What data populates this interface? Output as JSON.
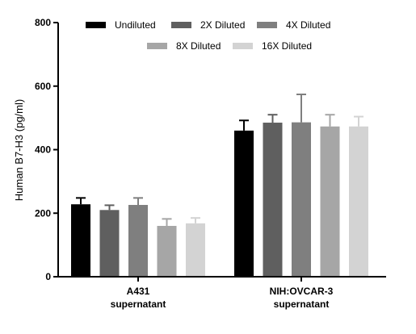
{
  "chart_data": {
    "type": "bar",
    "ylabel": "Human B7-H3 (pg/ml)",
    "xlabel": "",
    "ylim": [
      0,
      800
    ],
    "yticks": [
      0,
      200,
      400,
      600,
      800
    ],
    "grid": false,
    "legend_position": "top",
    "categories": [
      [
        "A431",
        "supernatant"
      ],
      [
        "NIH:OVCAR-3",
        "supernatant"
      ]
    ],
    "series": [
      {
        "name": "Undiluted",
        "color": "#000000",
        "values": [
          228,
          460
        ],
        "errors": [
          20,
          32
        ]
      },
      {
        "name": "2X Diluted",
        "color": "#5f5f5f",
        "values": [
          210,
          485
        ],
        "errors": [
          15,
          25
        ]
      },
      {
        "name": "4X Diluted",
        "color": "#7f7f7f",
        "values": [
          226,
          486
        ],
        "errors": [
          22,
          88
        ]
      },
      {
        "name": "8X Diluted",
        "color": "#a6a6a6",
        "values": [
          160,
          473
        ],
        "errors": [
          22,
          37
        ]
      },
      {
        "name": "16X Diluted",
        "color": "#d3d3d3",
        "values": [
          168,
          473
        ],
        "errors": [
          17,
          31
        ]
      }
    ]
  }
}
